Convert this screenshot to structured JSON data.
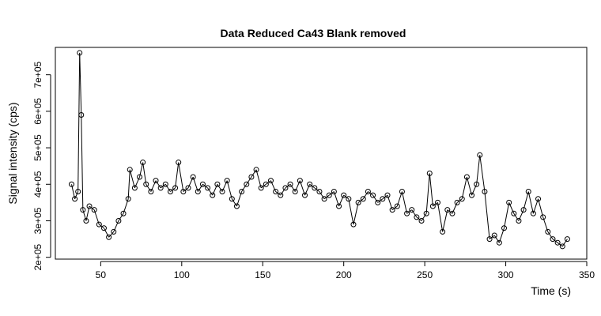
{
  "chart_data": {
    "type": "line",
    "title": "Data Reduced Ca43 Blank removed",
    "xlabel": "Time (s)",
    "ylabel": "Signal intensity (cps)",
    "xlim": [
      22,
      350
    ],
    "ylim": [
      195000,
      775000
    ],
    "x_ticks": [
      50,
      100,
      150,
      200,
      250,
      300,
      350
    ],
    "x_tick_labels": [
      "50",
      "100",
      "150",
      "200",
      "250",
      "300",
      "350"
    ],
    "y_ticks": [
      200000,
      300000,
      400000,
      500000,
      600000,
      700000
    ],
    "y_tick_labels": [
      "2e+05",
      "3e+05",
      "4e+05",
      "5e+05",
      "6e+05",
      "7e+05"
    ],
    "grid": false,
    "legend": "none",
    "marker": "open-circle",
    "line_style": "overplotted line and points",
    "series": [
      {
        "x": [
          32,
          34,
          36,
          37,
          38,
          39,
          41,
          43,
          46,
          49,
          52,
          55,
          58,
          61,
          64,
          67,
          68,
          71,
          74,
          76,
          78,
          81,
          84,
          87,
          90,
          93,
          96,
          98,
          101,
          104,
          107,
          110,
          113,
          116,
          119,
          122,
          125,
          128,
          131,
          134,
          137,
          140,
          143,
          146,
          149,
          152,
          155,
          158,
          161,
          164,
          167,
          170,
          173,
          176,
          179,
          182,
          185,
          188,
          191,
          194,
          197,
          200,
          203,
          206,
          209,
          212,
          215,
          218,
          221,
          224,
          227,
          230,
          233,
          236,
          239,
          242,
          245,
          248,
          251,
          253,
          255,
          258,
          261,
          264,
          267,
          270,
          273,
          276,
          279,
          282,
          284,
          287,
          290,
          293,
          296,
          299,
          302,
          305,
          308,
          311,
          314,
          317,
          320,
          323,
          326,
          329,
          332,
          335,
          338
        ],
        "y": [
          400000,
          360000,
          380000,
          760000,
          590000,
          330000,
          300000,
          340000,
          330000,
          290000,
          280000,
          255000,
          270000,
          300000,
          320000,
          360000,
          440000,
          390000,
          420000,
          460000,
          400000,
          380000,
          410000,
          390000,
          400000,
          380000,
          390000,
          460000,
          380000,
          390000,
          420000,
          380000,
          400000,
          390000,
          370000,
          400000,
          380000,
          410000,
          360000,
          340000,
          380000,
          400000,
          420000,
          440000,
          390000,
          400000,
          410000,
          380000,
          370000,
          390000,
          400000,
          380000,
          410000,
          370000,
          400000,
          390000,
          380000,
          360000,
          370000,
          380000,
          340000,
          370000,
          360000,
          290000,
          350000,
          360000,
          380000,
          370000,
          350000,
          360000,
          370000,
          330000,
          340000,
          380000,
          320000,
          330000,
          310000,
          300000,
          320000,
          430000,
          340000,
          350000,
          270000,
          330000,
          320000,
          350000,
          360000,
          420000,
          370000,
          400000,
          480000,
          380000,
          250000,
          260000,
          240000,
          280000,
          350000,
          320000,
          300000,
          330000,
          380000,
          320000,
          360000,
          310000,
          270000,
          250000,
          240000,
          230000,
          250000
        ]
      }
    ]
  }
}
